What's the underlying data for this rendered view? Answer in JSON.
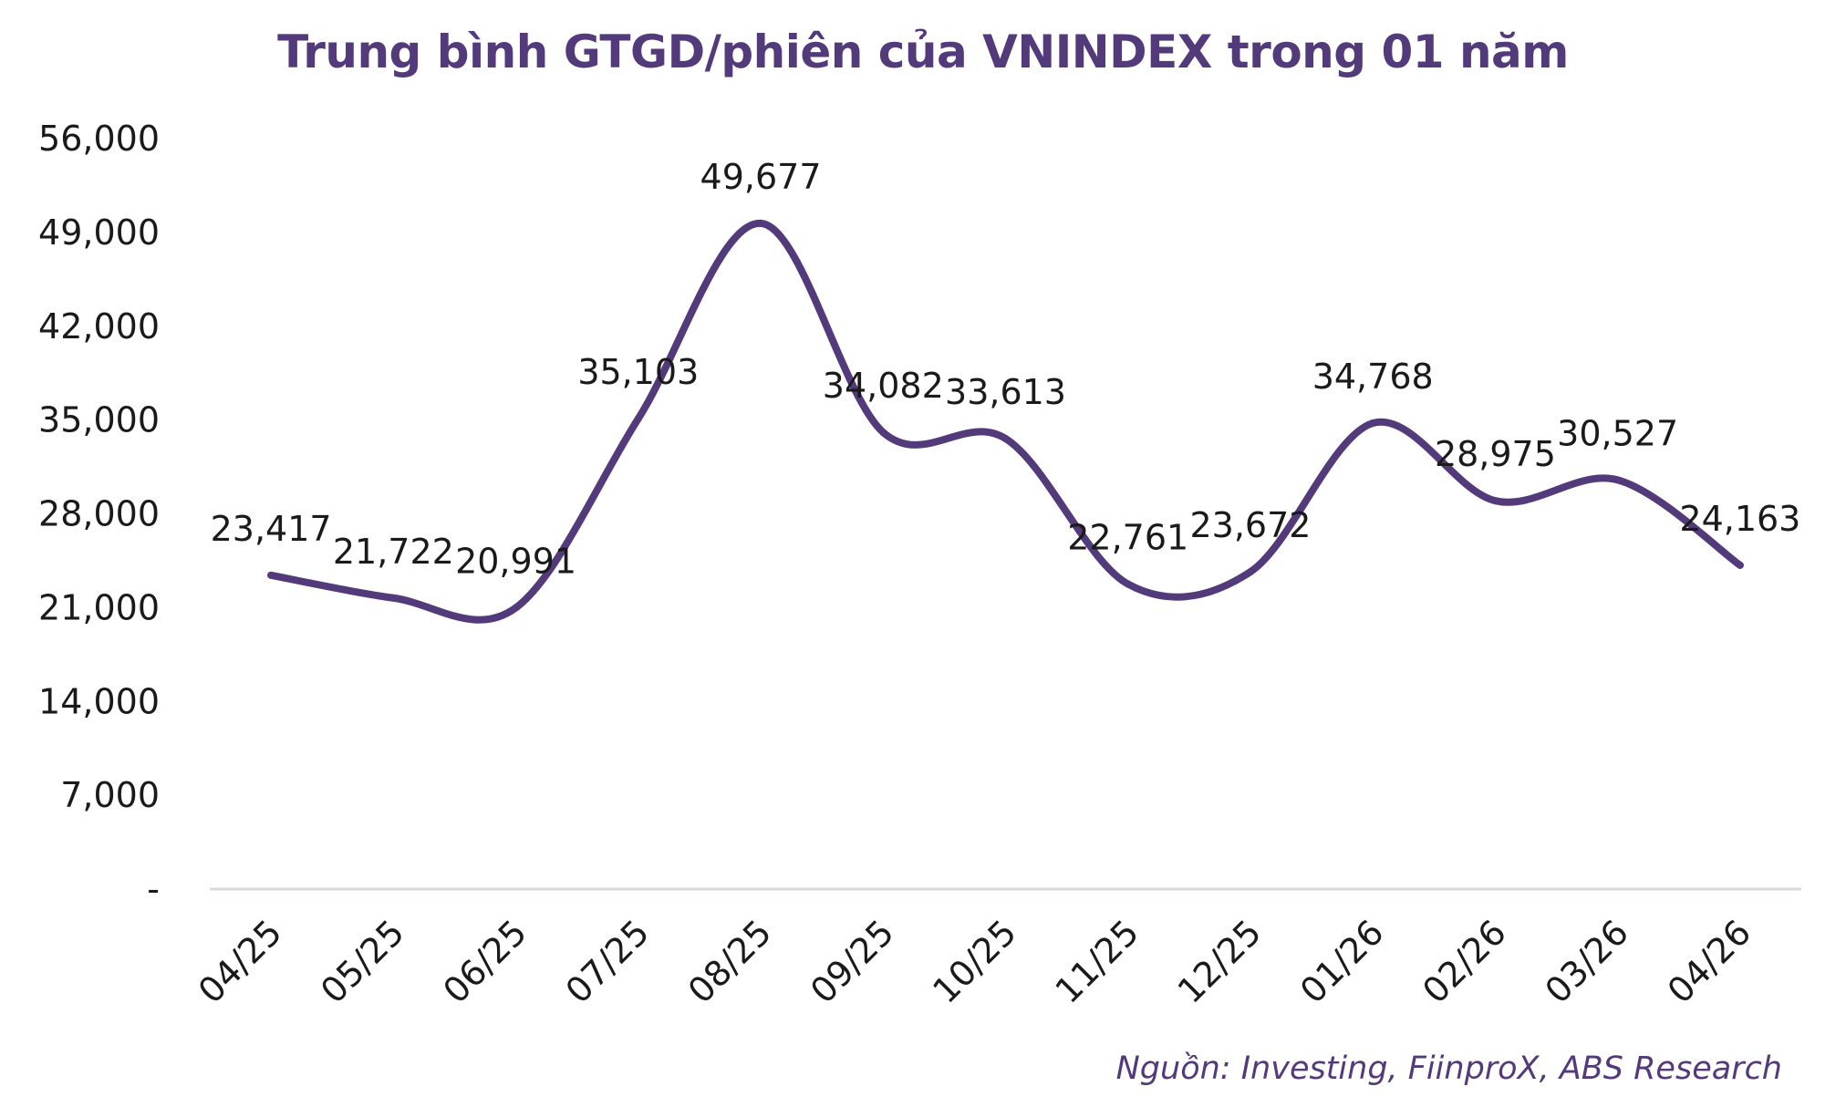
{
  "chart_data": {
    "type": "line",
    "title": "Trung bình GTGD/phiên của VNINDEX trong 01 năm",
    "xlabel": "",
    "ylabel": "",
    "categories": [
      "04/25",
      "05/25",
      "06/25",
      "07/25",
      "08/25",
      "09/25",
      "10/25",
      "11/25",
      "12/25",
      "01/26",
      "02/26",
      "03/26",
      "04/26"
    ],
    "values": [
      23417,
      21722,
      20991,
      35103,
      49677,
      34082,
      33613,
      22761,
      23672,
      34768,
      28975,
      30527,
      24163
    ],
    "data_labels": [
      "23,417",
      "21,722",
      "20,991",
      "35,103",
      "49,677",
      "34,082",
      "33,613",
      "22,761",
      "23,672",
      "34,768",
      "28,975",
      "30,527",
      "24,163"
    ],
    "ylim": [
      0,
      56000
    ],
    "yticks": [
      0,
      7000,
      14000,
      21000,
      28000,
      35000,
      42000,
      49000,
      56000
    ],
    "ytick_labels": [
      "-",
      "7,000",
      "14,000",
      "21,000",
      "28,000",
      "35,000",
      "42,000",
      "49,000",
      "56,000"
    ],
    "grid": false,
    "smooth": true,
    "line_color": "#533A7B",
    "source": "Nguồn: Investing, FiinproX, ABS Research"
  },
  "colors": {
    "title": "#533A7B",
    "line": "#533A7B",
    "axis": "#D9D9D9",
    "text": "#1A1A1A",
    "source": "#533A7B"
  }
}
